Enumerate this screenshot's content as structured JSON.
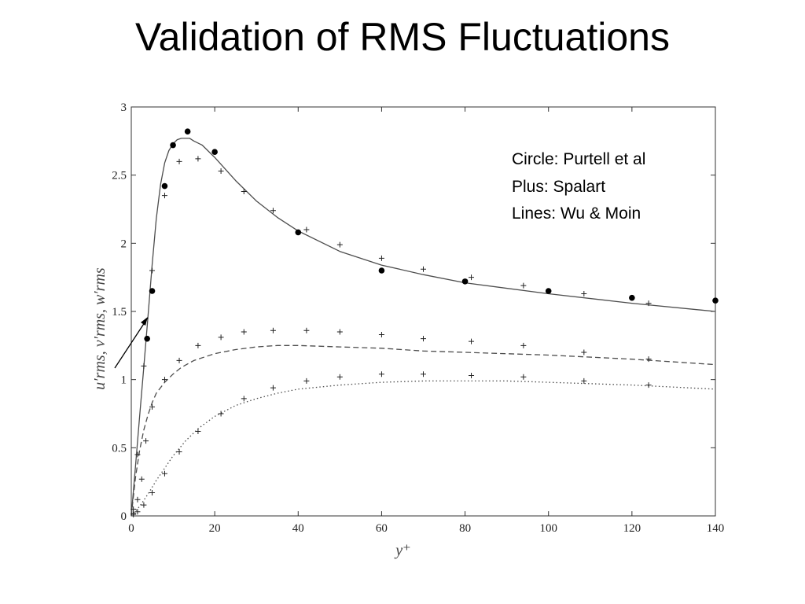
{
  "slide": {
    "title": "Validation of RMS Fluctuations"
  },
  "chart_data": {
    "type": "scatter",
    "xlabel": "y⁺",
    "ylabel": "u′rms, v′rms, w′rms",
    "xlim": [
      0,
      140
    ],
    "ylim": [
      0,
      3
    ],
    "x_ticks": [
      0,
      20,
      40,
      60,
      80,
      100,
      120,
      140
    ],
    "y_ticks": [
      0,
      0.5,
      1,
      1.5,
      2,
      2.5,
      3
    ],
    "grid": false,
    "annotations": [
      "Circle: Purtell et al",
      "Plus: Spalart",
      "Lines: Wu & Moin"
    ],
    "series": [
      {
        "name": "Purtell et al",
        "marker": "circle",
        "x": [
          3.8,
          5,
          8,
          10,
          13.5,
          20,
          40,
          60,
          80,
          100,
          120,
          140
        ],
        "y": [
          1.3,
          1.65,
          2.42,
          2.72,
          2.82,
          2.67,
          2.08,
          1.8,
          1.72,
          1.65,
          1.6,
          1.58
        ]
      },
      {
        "name": "Spalart u′",
        "marker": "plus",
        "x": [
          0.5,
          1.5,
          3,
          5,
          8,
          11.5,
          16,
          21.5,
          27,
          34,
          42,
          50,
          60,
          70,
          81.5,
          94,
          108.5,
          124
        ],
        "y": [
          0.05,
          0.45,
          1.1,
          1.8,
          2.35,
          2.6,
          2.62,
          2.53,
          2.38,
          2.24,
          2.1,
          1.99,
          1.89,
          1.81,
          1.75,
          1.69,
          1.63,
          1.56
        ]
      },
      {
        "name": "Spalart v′",
        "marker": "plus",
        "x": [
          0.5,
          1.5,
          2.5,
          3.5,
          5,
          8,
          11.5,
          16,
          21.5,
          27,
          34,
          42,
          50,
          60,
          70,
          81.5,
          94,
          108.5,
          124
        ],
        "y": [
          0.02,
          0.12,
          0.27,
          0.55,
          0.8,
          1.0,
          1.14,
          1.25,
          1.31,
          1.35,
          1.36,
          1.36,
          1.35,
          1.33,
          1.3,
          1.28,
          1.25,
          1.2,
          1.15
        ]
      },
      {
        "name": "Spalart w′",
        "marker": "plus",
        "x": [
          0.5,
          1.5,
          3,
          5,
          8,
          11.5,
          16,
          21.5,
          27,
          34,
          42,
          50,
          60,
          70,
          81.5,
          94,
          108.5,
          124
        ],
        "y": [
          0.01,
          0.03,
          0.08,
          0.17,
          0.31,
          0.47,
          0.62,
          0.75,
          0.86,
          0.94,
          0.99,
          1.02,
          1.04,
          1.04,
          1.03,
          1.02,
          0.99,
          0.96
        ]
      },
      {
        "name": "Wu & Moin u′",
        "style": "solid",
        "x": [
          0,
          1,
          2,
          3,
          4,
          5,
          6,
          7,
          8,
          9,
          10,
          11,
          12,
          13,
          14,
          15,
          17,
          20,
          25,
          30,
          35,
          40,
          50,
          60,
          70,
          80,
          100,
          120,
          140
        ],
        "y": [
          0,
          0.36,
          0.73,
          1.09,
          1.46,
          1.84,
          2.18,
          2.43,
          2.59,
          2.68,
          2.73,
          2.76,
          2.77,
          2.77,
          2.77,
          2.75,
          2.72,
          2.63,
          2.46,
          2.31,
          2.19,
          2.09,
          1.94,
          1.84,
          1.77,
          1.71,
          1.63,
          1.56,
          1.5
        ]
      },
      {
        "name": "Wu & Moin v′",
        "style": "dashed",
        "x": [
          0,
          1,
          2,
          3,
          4,
          5,
          6,
          8,
          10,
          12,
          15,
          20,
          25,
          30,
          35,
          40,
          50,
          60,
          70,
          80,
          100,
          120,
          140
        ],
        "y": [
          0,
          0.28,
          0.48,
          0.63,
          0.74,
          0.83,
          0.9,
          0.98,
          1.04,
          1.09,
          1.14,
          1.19,
          1.22,
          1.24,
          1.25,
          1.25,
          1.24,
          1.23,
          1.21,
          1.2,
          1.18,
          1.15,
          1.11
        ]
      },
      {
        "name": "Wu & Moin w′",
        "style": "dotted",
        "x": [
          0,
          2,
          4,
          6,
          8,
          10,
          13,
          16,
          20,
          25,
          30,
          35,
          40,
          50,
          60,
          70,
          80,
          90,
          100,
          120,
          140
        ],
        "y": [
          0,
          0.07,
          0.16,
          0.26,
          0.35,
          0.44,
          0.55,
          0.64,
          0.73,
          0.81,
          0.86,
          0.9,
          0.93,
          0.96,
          0.98,
          0.99,
          0.99,
          0.99,
          0.98,
          0.96,
          0.93
        ]
      }
    ]
  },
  "colors": {
    "axis": "#333333",
    "curve": "#4d4d4d",
    "marker": "#000000"
  }
}
